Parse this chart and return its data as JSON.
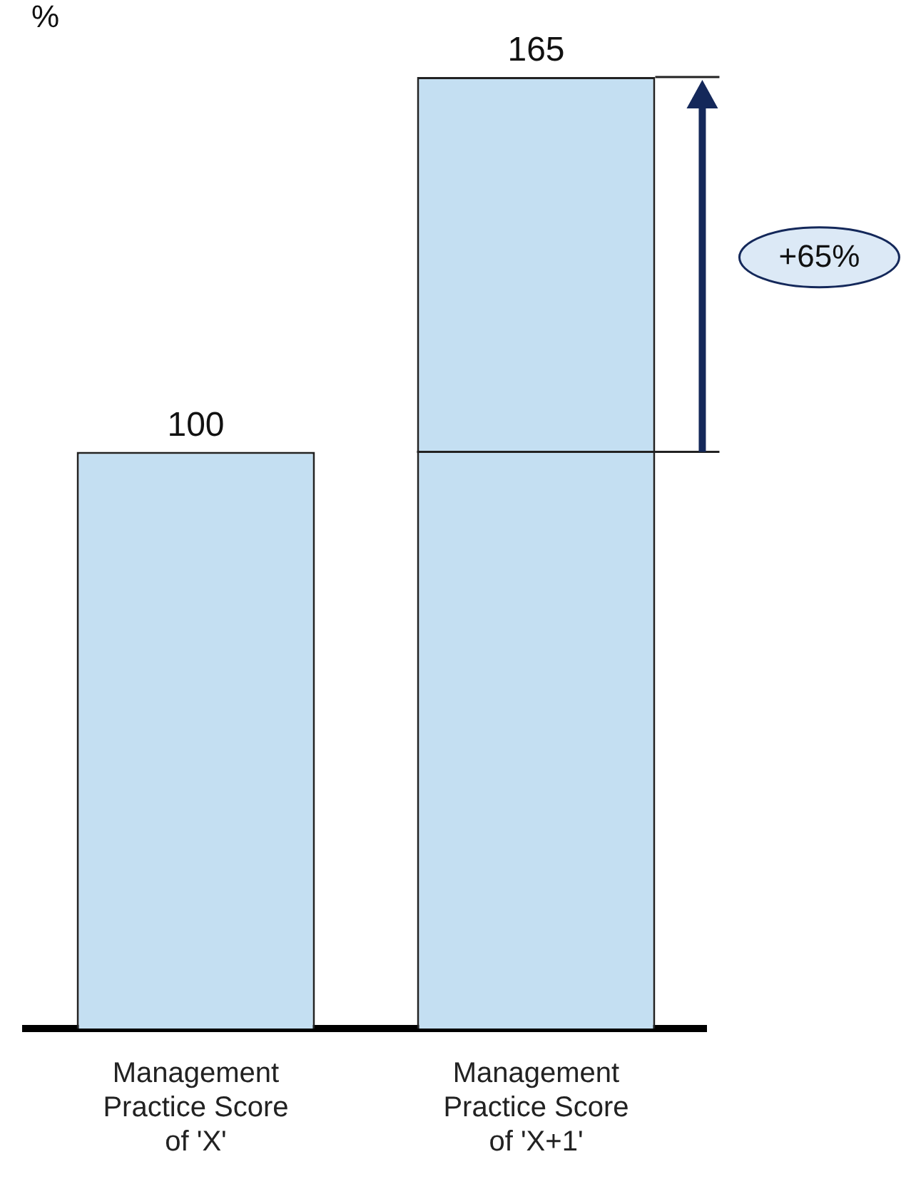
{
  "chart_data": {
    "type": "bar",
    "ylabel": "%",
    "categories": [
      "Management Practice Score of 'X'",
      "Management Practice Score of 'X+1'"
    ],
    "values": [
      100,
      165
    ],
    "color": "#c4dff2",
    "data_labels": true,
    "grid": false,
    "legend": false,
    "ref_lines": [
      {
        "axis": "y",
        "value": 100,
        "color": "#222222"
      }
    ],
    "annotations": [
      "+65%"
    ]
  }
}
